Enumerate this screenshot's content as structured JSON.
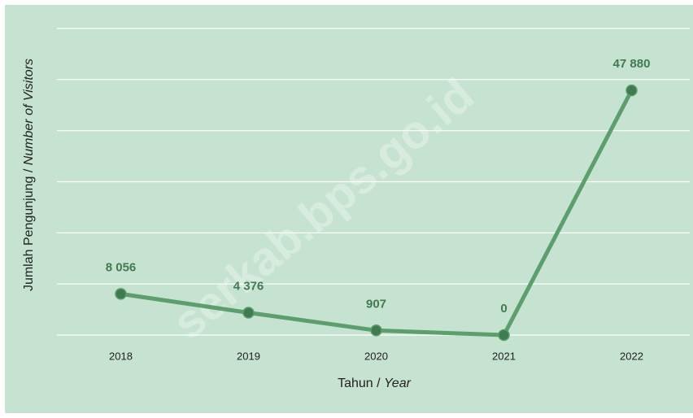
{
  "chart_data": {
    "type": "line",
    "watermark": "serkab.bps.go.id",
    "y_label": {
      "text": "Jumlah Pengunjung /",
      "italic": "Number of Visitors"
    },
    "x_label": {
      "text": "Tahun /",
      "italic": "Year"
    },
    "categories": [
      "2018",
      "2019",
      "2020",
      "2021",
      "2022"
    ],
    "series": [
      {
        "name": "Jumlah Pengunjung",
        "color": "#5c9e6c",
        "marker_color": "#3f7a50",
        "values": [
          8056,
          4376,
          907,
          0,
          47880
        ],
        "value_labels": [
          "8 056",
          "4 376",
          "907",
          "0",
          "47 880"
        ]
      }
    ],
    "ylim": [
      0,
      60000
    ],
    "yticks": [
      0,
      10000,
      20000,
      30000,
      40000,
      50000,
      60000
    ],
    "grid": true
  }
}
